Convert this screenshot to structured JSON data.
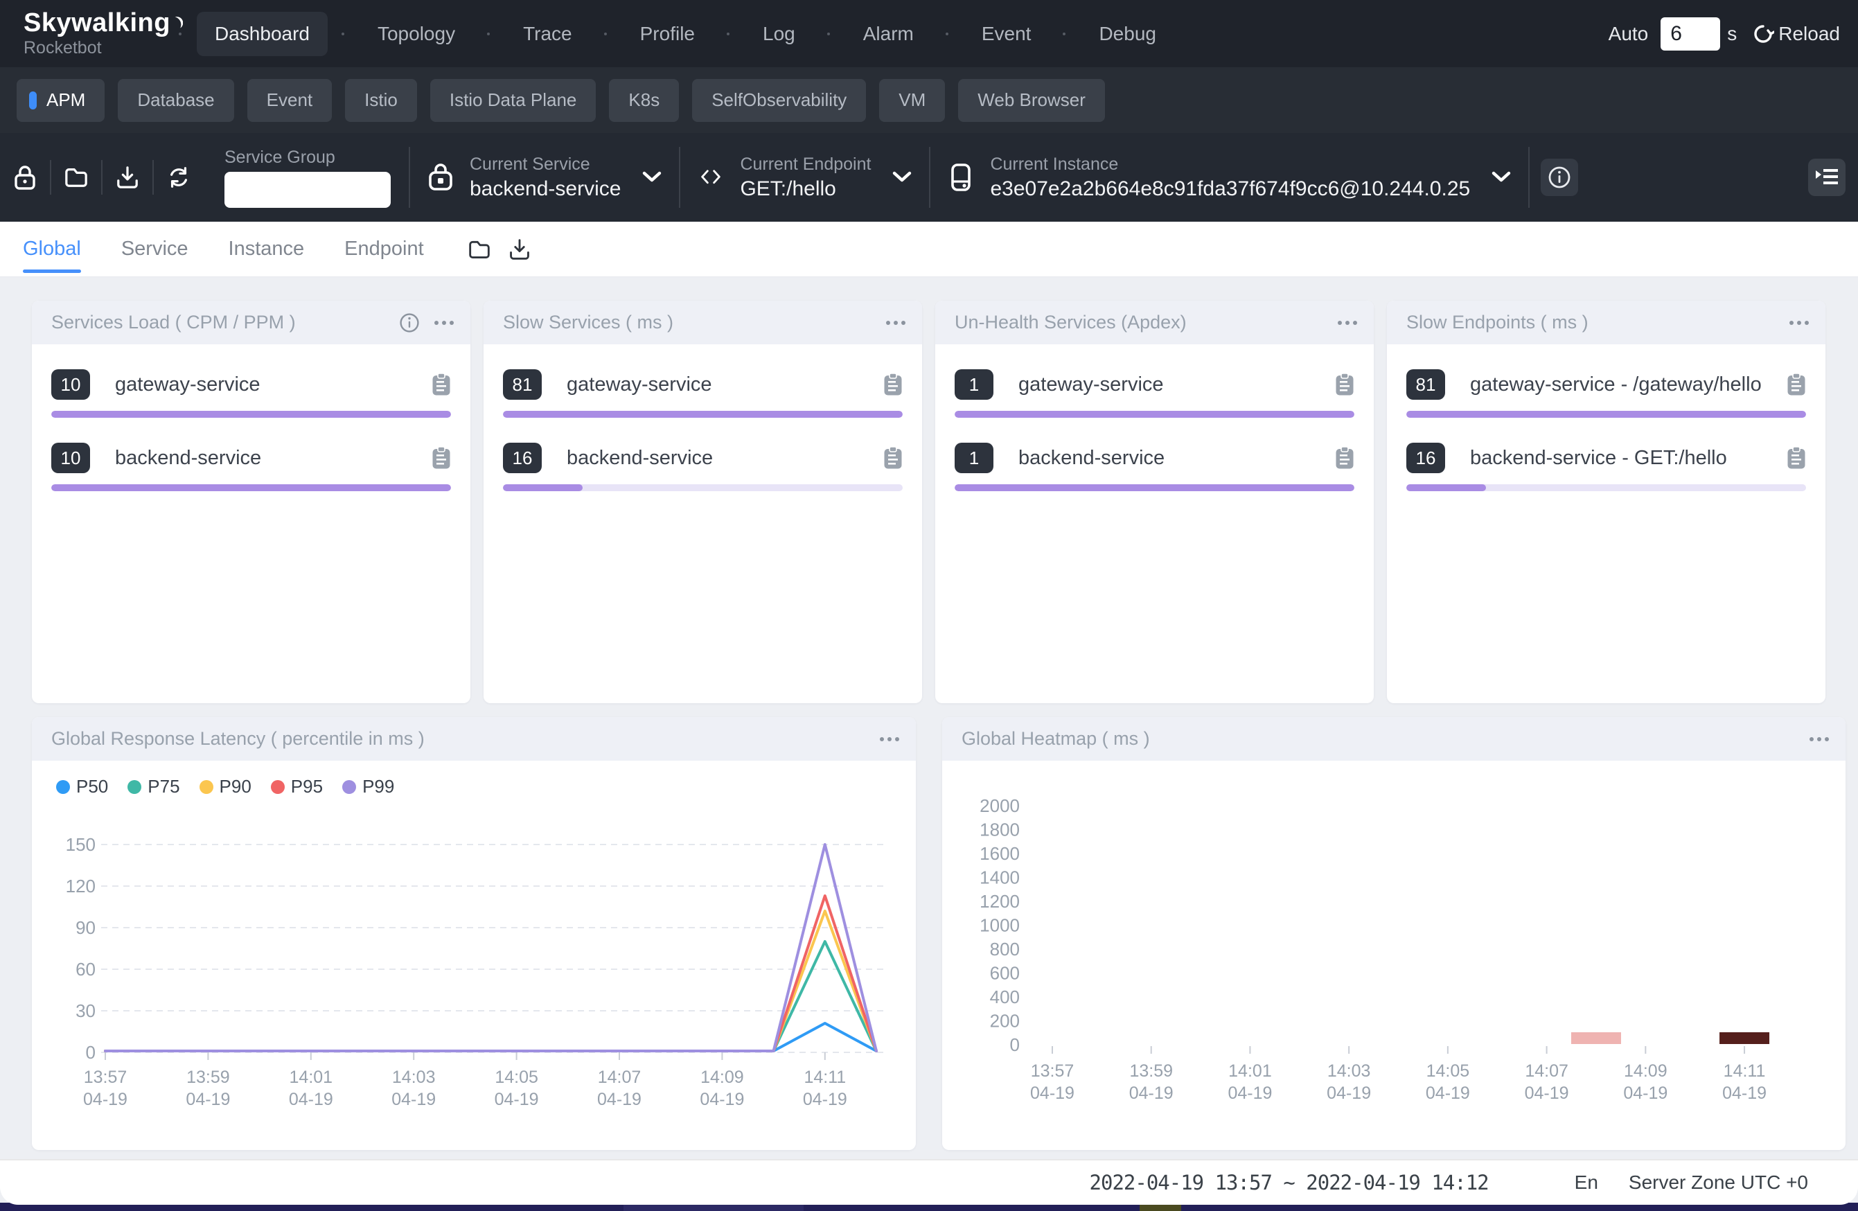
{
  "nav": {
    "brand": "Skywalking",
    "brand_sub": "Rocketbot",
    "items": [
      "Dashboard",
      "Topology",
      "Trace",
      "Profile",
      "Log",
      "Alarm",
      "Event",
      "Debug"
    ],
    "active": "Dashboard",
    "auto_label": "Auto",
    "auto_value": "6",
    "auto_unit": "s",
    "reload_label": "Reload"
  },
  "categories": {
    "items": [
      "APM",
      "Database",
      "Event",
      "Istio",
      "Istio Data Plane",
      "K8s",
      "SelfObservability",
      "VM",
      "Web Browser"
    ],
    "active": "APM"
  },
  "toolbar": {
    "service_group": {
      "label": "Service Group",
      "value": ""
    },
    "current_service": {
      "label": "Current Service",
      "value": "backend-service"
    },
    "current_endpoint": {
      "label": "Current Endpoint",
      "value": "GET:/hello"
    },
    "current_instance": {
      "label": "Current Instance",
      "value": "e3e07e2a2b664e8c91fda37f674f9cc6@10.244.0.25"
    }
  },
  "tabs": {
    "items": [
      "Global",
      "Service",
      "Instance",
      "Endpoint"
    ],
    "active": "Global"
  },
  "metric_cards": [
    {
      "title": "Services Load ( CPM / PPM )",
      "has_info": true,
      "rows": [
        {
          "value": "10",
          "name": "gateway-service",
          "bar_pct": 100
        },
        {
          "value": "10",
          "name": "backend-service",
          "bar_pct": 100
        }
      ]
    },
    {
      "title": "Slow Services ( ms )",
      "has_info": false,
      "rows": [
        {
          "value": "81",
          "name": "gateway-service",
          "bar_pct": 100
        },
        {
          "value": "16",
          "name": "backend-service",
          "bar_pct": 20
        }
      ]
    },
    {
      "title": "Un-Health Services (Apdex)",
      "has_info": false,
      "rows": [
        {
          "value": "1",
          "name": "gateway-service",
          "bar_pct": 100
        },
        {
          "value": "1",
          "name": "backend-service",
          "bar_pct": 100
        }
      ]
    },
    {
      "title": "Slow Endpoints ( ms )",
      "has_info": false,
      "rows": [
        {
          "value": "81",
          "name": "gateway-service - /gateway/hello",
          "bar_pct": 100
        },
        {
          "value": "16",
          "name": "backend-service - GET:/hello",
          "bar_pct": 20
        }
      ]
    }
  ],
  "chart_data": [
    {
      "type": "line",
      "title": "Global Response Latency ( percentile in ms )",
      "x": [
        "13:57",
        "13:58",
        "13:59",
        "14:00",
        "14:01",
        "14:02",
        "14:03",
        "14:04",
        "14:05",
        "14:06",
        "14:07",
        "14:08",
        "14:09",
        "14:10",
        "14:11",
        "14:12"
      ],
      "x_label_every": 2,
      "date_label": "04-19",
      "ylim": [
        0,
        150
      ],
      "yticks": [
        0,
        30,
        60,
        90,
        120,
        150
      ],
      "grid": "dashed",
      "legend_position": "top-left",
      "series": [
        {
          "name": "P50",
          "color": "#2f9bf5",
          "values": [
            1,
            1,
            1,
            1,
            1,
            1,
            1,
            1,
            1,
            1,
            1,
            1,
            1,
            1,
            21,
            1
          ]
        },
        {
          "name": "P75",
          "color": "#3fb8a6",
          "values": [
            1,
            1,
            1,
            1,
            1,
            1,
            1,
            1,
            1,
            1,
            1,
            1,
            1,
            1,
            80,
            1
          ]
        },
        {
          "name": "P90",
          "color": "#fbc64f",
          "values": [
            1,
            1,
            1,
            1,
            1,
            1,
            1,
            1,
            1,
            1,
            1,
            1,
            1,
            1,
            102,
            1
          ]
        },
        {
          "name": "P95",
          "color": "#f06464",
          "values": [
            1,
            1,
            1,
            1,
            1,
            1,
            1,
            1,
            1,
            1,
            1,
            1,
            1,
            1,
            113,
            1
          ]
        },
        {
          "name": "P99",
          "color": "#9e8fe0",
          "values": [
            1,
            1,
            1,
            1,
            1,
            1,
            1,
            1,
            1,
            1,
            1,
            1,
            1,
            1,
            150,
            1
          ]
        }
      ]
    },
    {
      "type": "heatmap",
      "title": "Global Heatmap ( ms )",
      "x": [
        "13:57",
        "13:58",
        "13:59",
        "14:00",
        "14:01",
        "14:02",
        "14:03",
        "14:04",
        "14:05",
        "14:06",
        "14:07",
        "14:08",
        "14:09",
        "14:10",
        "14:11",
        "14:12"
      ],
      "x_label_every": 2,
      "date_label": "04-19",
      "yticks": [
        0,
        200,
        400,
        600,
        800,
        1000,
        1200,
        1400,
        1600,
        1800,
        2000
      ],
      "cells": [
        {
          "x": "14:08",
          "bucket": 0,
          "color": "#efb3b1"
        },
        {
          "x": "14:11",
          "bucket": 0,
          "color": "#551f1c"
        }
      ]
    }
  ],
  "footer": {
    "time_range": "2022-04-19 13:57 ~ 2022-04-19 14:12",
    "lang": "En",
    "server_zone": "Server Zone UTC +0"
  }
}
